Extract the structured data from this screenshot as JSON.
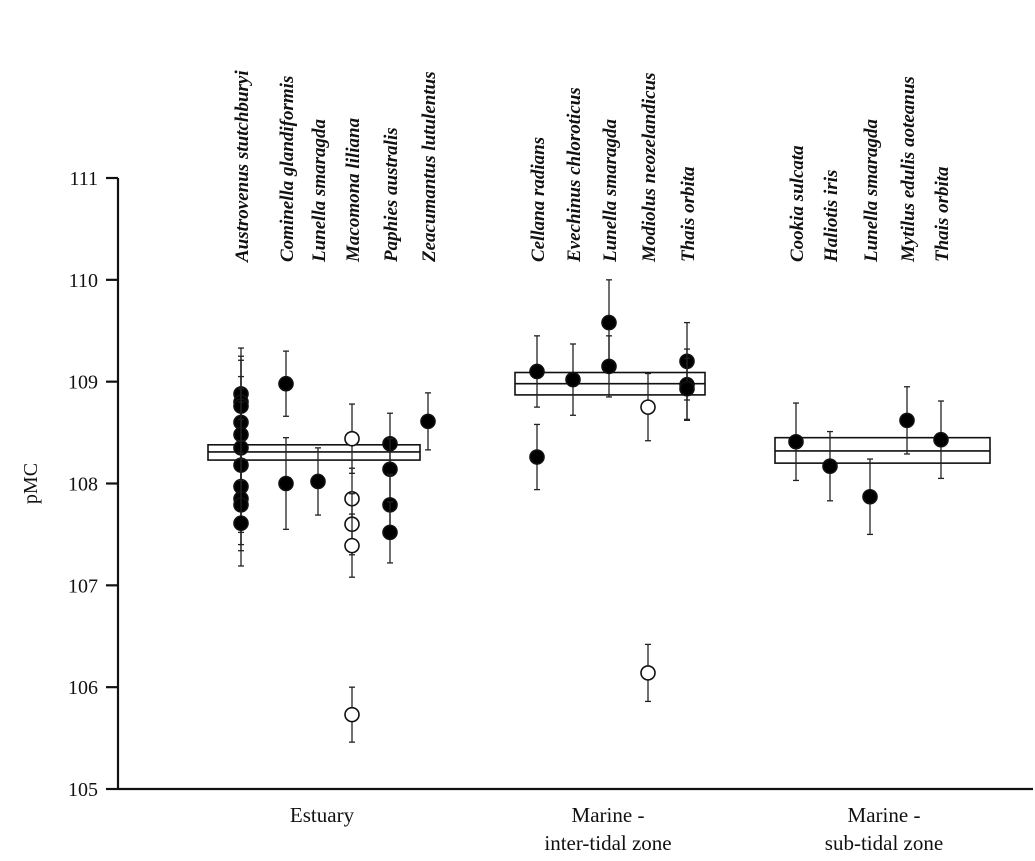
{
  "chart_data": {
    "type": "scatter",
    "title": "",
    "xlabel": "",
    "ylabel": "pMC",
    "ylim": [
      105,
      111
    ],
    "yticks": [
      105,
      106,
      107,
      108,
      109,
      110,
      111
    ],
    "grid": false,
    "legend": "none",
    "colors": {
      "filled": "#000000",
      "open": "#ffffff",
      "stroke": "#111111"
    },
    "groups": [
      {
        "name": "Estuary",
        "label_lines": [
          "Estuary"
        ],
        "mean": 108.31,
        "band": [
          108.23,
          108.38
        ],
        "species": [
          {
            "name": "Austrovenus stutchburyi",
            "points": [
              {
                "y": 108.88,
                "err": 0.45,
                "filled": true
              },
              {
                "y": 108.8,
                "err": 0.45,
                "filled": true
              },
              {
                "y": 108.76,
                "err": 0.45,
                "filled": true
              },
              {
                "y": 108.6,
                "err": 0.45,
                "filled": true
              },
              {
                "y": 108.48,
                "err": 0.45,
                "filled": true
              },
              {
                "y": 108.35,
                "err": 0.45,
                "filled": true
              },
              {
                "y": 108.18,
                "err": 0.45,
                "filled": true
              },
              {
                "y": 107.97,
                "err": 0.45,
                "filled": true
              },
              {
                "y": 107.85,
                "err": 0.45,
                "filled": true
              },
              {
                "y": 107.79,
                "err": 0.45,
                "filled": true
              },
              {
                "y": 107.61,
                "err": 0.42,
                "filled": true
              }
            ]
          },
          {
            "name": "Cominella glandiformis",
            "points": [
              {
                "y": 108.98,
                "err": 0.32,
                "filled": true
              },
              {
                "y": 108.0,
                "err": 0.45,
                "filled": true
              }
            ]
          },
          {
            "name": "Lunella smaragda",
            "points": [
              {
                "y": 108.02,
                "err": 0.33,
                "filled": true
              }
            ]
          },
          {
            "name": "Macomona liliana",
            "points": [
              {
                "y": 108.44,
                "err": 0.34,
                "filled": false
              },
              {
                "y": 107.85,
                "err": 0.3,
                "filled": false
              },
              {
                "y": 107.6,
                "err": 0.3,
                "filled": false
              },
              {
                "y": 107.39,
                "err": 0.31,
                "filled": false
              },
              {
                "y": 105.73,
                "err": 0.27,
                "filled": false
              }
            ]
          },
          {
            "name": "Paphies australis",
            "points": [
              {
                "y": 108.39,
                "err": 0.3,
                "filled": true
              },
              {
                "y": 108.14,
                "err": 0.3,
                "filled": true
              },
              {
                "y": 107.79,
                "err": 0.3,
                "filled": true
              },
              {
                "y": 107.52,
                "err": 0.3,
                "filled": true
              }
            ]
          },
          {
            "name": "Zeacumantus lutulentus",
            "points": [
              {
                "y": 108.61,
                "err": 0.28,
                "filled": true
              }
            ]
          }
        ]
      },
      {
        "name": "Marine - inter-tidal zone",
        "label_lines": [
          "Marine -",
          "inter-tidal zone"
        ],
        "mean": 108.98,
        "band": [
          108.87,
          109.09
        ],
        "species": [
          {
            "name": "Cellana radians",
            "points": [
              {
                "y": 109.1,
                "err": 0.35,
                "filled": true
              },
              {
                "y": 108.26,
                "err": 0.32,
                "filled": true
              }
            ]
          },
          {
            "name": "Evechinus chloroticus",
            "points": [
              {
                "y": 109.02,
                "err": 0.35,
                "filled": true
              }
            ]
          },
          {
            "name": "Lunella smaragda",
            "points": [
              {
                "y": 109.58,
                "err": 0.42,
                "filled": true
              },
              {
                "y": 109.15,
                "err": 0.3,
                "filled": true
              }
            ]
          },
          {
            "name": "Modiolus neozelandicus",
            "points": [
              {
                "y": 108.75,
                "err": 0.33,
                "filled": false
              },
              {
                "y": 106.14,
                "err": 0.28,
                "filled": false
              }
            ]
          },
          {
            "name": "Thais orbita",
            "points": [
              {
                "y": 109.2,
                "err": 0.38,
                "filled": true
              },
              {
                "y": 108.97,
                "err": 0.35,
                "filled": true
              },
              {
                "y": 108.93,
                "err": 0.3,
                "filled": true
              }
            ]
          }
        ]
      },
      {
        "name": "Marine - sub-tidal zone",
        "label_lines": [
          "Marine -",
          "sub-tidal zone"
        ],
        "mean": 108.32,
        "band": [
          108.2,
          108.45
        ],
        "species": [
          {
            "name": "Cookia sulcata",
            "points": [
              {
                "y": 108.41,
                "err": 0.38,
                "filled": true
              }
            ]
          },
          {
            "name": "Haliotis iris",
            "points": [
              {
                "y": 108.17,
                "err": 0.34,
                "filled": true
              }
            ]
          },
          {
            "name": "Lunella smaragda",
            "points": [
              {
                "y": 107.87,
                "err": 0.37,
                "filled": true
              }
            ]
          },
          {
            "name": "Mytilus edulis aoteanus",
            "points": [
              {
                "y": 108.62,
                "err": 0.33,
                "filled": true
              }
            ]
          },
          {
            "name": "Thais orbita",
            "points": [
              {
                "y": 108.43,
                "err": 0.38,
                "filled": true
              }
            ]
          }
        ]
      }
    ]
  }
}
